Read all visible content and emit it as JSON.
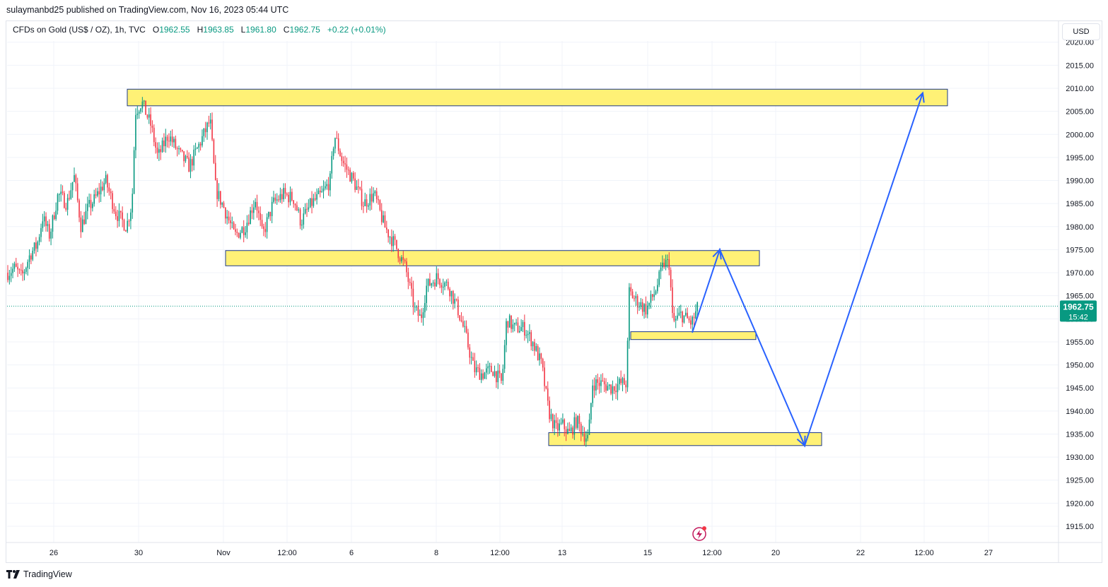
{
  "header": {
    "published": "sulaymanbd25 published on TradingView.com, Nov 16, 2023 05:44 UTC"
  },
  "legend": {
    "symbol": "CFDs on Gold (US$ / OZ), 1h, TVC",
    "o_label": "O",
    "o_value": "1962.55",
    "h_label": "H",
    "h_value": "1963.85",
    "l_label": "L",
    "l_value": "1961.80",
    "c_label": "C",
    "c_value": "1962.75",
    "change": "+0.22 (+0.01%)"
  },
  "currency_button": "USD",
  "footer": {
    "brand": "TradingView"
  },
  "colors": {
    "up": "#089981",
    "down": "#f23645",
    "zone_fill": "#fff176",
    "zone_border": "#1e3a8a",
    "arrow": "#2962ff",
    "grid": "#f0f3fa"
  },
  "chart_data": {
    "type": "candlestick",
    "y_axis": {
      "ylim": [
        1910,
        2022
      ],
      "ticks": [
        "1915.00",
        "1920.00",
        "1925.00",
        "1930.00",
        "1935.00",
        "1940.00",
        "1945.00",
        "1950.00",
        "1955.00",
        "1960.00",
        "1965.00",
        "1970.00",
        "1975.00",
        "1980.00",
        "1985.00",
        "1990.00",
        "1995.00",
        "2000.00",
        "2005.00",
        "2010.00",
        "2015.00",
        "2020.00"
      ]
    },
    "x_axis": {
      "ticks": [
        "26",
        "30",
        "Nov",
        "12:00",
        "6",
        "8",
        "12:00",
        "13",
        "15",
        "12:00",
        "20",
        "22",
        "12:00",
        "27"
      ]
    },
    "last_price": {
      "value": "1962.75",
      "countdown": "15:42"
    },
    "approx_path": [
      {
        "t": 0,
        "p": 1970
      },
      {
        "t": 10,
        "p": 1971
      },
      {
        "t": 20,
        "p": 1969
      },
      {
        "t": 32,
        "p": 1974
      },
      {
        "t": 42,
        "p": 1976
      },
      {
        "t": 50,
        "p": 1982
      },
      {
        "t": 60,
        "p": 1978
      },
      {
        "t": 72,
        "p": 1987
      },
      {
        "t": 85,
        "p": 1985
      },
      {
        "t": 95,
        "p": 1991
      },
      {
        "t": 105,
        "p": 1980
      },
      {
        "t": 115,
        "p": 1984
      },
      {
        "t": 125,
        "p": 1986
      },
      {
        "t": 140,
        "p": 1990
      },
      {
        "t": 155,
        "p": 1983
      },
      {
        "t": 170,
        "p": 1980
      },
      {
        "t": 178,
        "p": 1985
      },
      {
        "t": 183,
        "p": 2005
      },
      {
        "t": 192,
        "p": 2007
      },
      {
        "t": 205,
        "p": 2002
      },
      {
        "t": 215,
        "p": 1995
      },
      {
        "t": 230,
        "p": 2000
      },
      {
        "t": 245,
        "p": 1996
      },
      {
        "t": 260,
        "p": 1993
      },
      {
        "t": 275,
        "p": 1998
      },
      {
        "t": 290,
        "p": 2003
      },
      {
        "t": 298,
        "p": 1988
      },
      {
        "t": 310,
        "p": 1984
      },
      {
        "t": 325,
        "p": 1978
      },
      {
        "t": 340,
        "p": 1980
      },
      {
        "t": 355,
        "p": 1986
      },
      {
        "t": 365,
        "p": 1978
      },
      {
        "t": 380,
        "p": 1985
      },
      {
        "t": 395,
        "p": 1987
      },
      {
        "t": 410,
        "p": 1986
      },
      {
        "t": 420,
        "p": 1981
      },
      {
        "t": 435,
        "p": 1985
      },
      {
        "t": 450,
        "p": 1987
      },
      {
        "t": 462,
        "p": 1990
      },
      {
        "t": 468,
        "p": 2000
      },
      {
        "t": 480,
        "p": 1994
      },
      {
        "t": 495,
        "p": 1990
      },
      {
        "t": 510,
        "p": 1985
      },
      {
        "t": 525,
        "p": 1987
      },
      {
        "t": 540,
        "p": 1980
      },
      {
        "t": 555,
        "p": 1976
      },
      {
        "t": 570,
        "p": 1971
      },
      {
        "t": 583,
        "p": 1962
      },
      {
        "t": 592,
        "p": 1960
      },
      {
        "t": 600,
        "p": 1967
      },
      {
        "t": 615,
        "p": 1969
      },
      {
        "t": 632,
        "p": 1967
      },
      {
        "t": 645,
        "p": 1962
      },
      {
        "t": 655,
        "p": 1957
      },
      {
        "t": 668,
        "p": 1949
      },
      {
        "t": 680,
        "p": 1948
      },
      {
        "t": 695,
        "p": 1949
      },
      {
        "t": 708,
        "p": 1946
      },
      {
        "t": 715,
        "p": 1960
      },
      {
        "t": 725,
        "p": 1958
      },
      {
        "t": 740,
        "p": 1958
      },
      {
        "t": 752,
        "p": 1955
      },
      {
        "t": 765,
        "p": 1950
      },
      {
        "t": 775,
        "p": 1940
      },
      {
        "t": 785,
        "p": 1936
      },
      {
        "t": 795,
        "p": 1937
      },
      {
        "t": 805,
        "p": 1935
      },
      {
        "t": 815,
        "p": 1938
      },
      {
        "t": 825,
        "p": 1935
      },
      {
        "t": 832,
        "p": 1934
      },
      {
        "t": 838,
        "p": 1946
      },
      {
        "t": 850,
        "p": 1946
      },
      {
        "t": 865,
        "p": 1945
      },
      {
        "t": 878,
        "p": 1946
      },
      {
        "t": 887,
        "p": 1946
      },
      {
        "t": 890,
        "p": 1966
      },
      {
        "t": 900,
        "p": 1964
      },
      {
        "t": 915,
        "p": 1962
      },
      {
        "t": 928,
        "p": 1966
      },
      {
        "t": 940,
        "p": 1972
      },
      {
        "t": 948,
        "p": 1972
      },
      {
        "t": 953,
        "p": 1959
      },
      {
        "t": 965,
        "p": 1961
      },
      {
        "t": 980,
        "p": 1959
      },
      {
        "t": 990,
        "p": 1962.75
      }
    ],
    "zones": [
      {
        "from": "30",
        "price_low": 2006.2,
        "price_high": 2009.8
      },
      {
        "from": "Nov",
        "price_low": 1971.5,
        "price_high": 1974.8
      },
      {
        "from": "15",
        "price_low": 1955.5,
        "price_high": 1957.2
      },
      {
        "from": "13",
        "price_low": 1932.5,
        "price_high": 1935.3
      }
    ],
    "projection": [
      1957,
      1975,
      1932.5,
      2009
    ]
  }
}
